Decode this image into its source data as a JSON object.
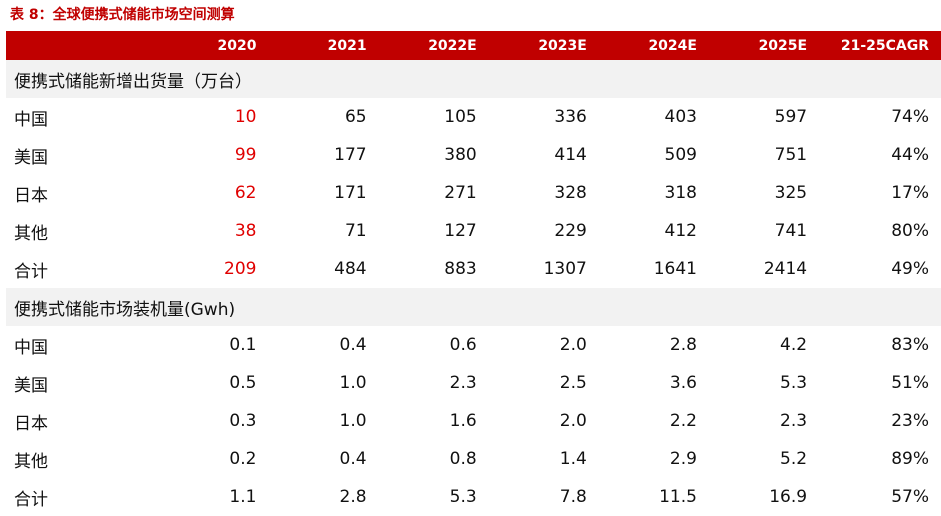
{
  "caption": "表 8：全球便携式储能市场空间测算",
  "columns": [
    "",
    "2020",
    "2021",
    "2022E",
    "2023E",
    "2024E",
    "2025E",
    "21-25CAGR"
  ],
  "sections": [
    {
      "title": "便携式储能新增出货量（万台）",
      "rows": [
        {
          "label": "中国",
          "values": [
            "10",
            "65",
            "105",
            "336",
            "403",
            "597",
            "74%"
          ]
        },
        {
          "label": "美国",
          "values": [
            "99",
            "177",
            "380",
            "414",
            "509",
            "751",
            "44%"
          ]
        },
        {
          "label": "日本",
          "values": [
            "62",
            "171",
            "271",
            "328",
            "318",
            "325",
            "17%"
          ]
        },
        {
          "label": "其他",
          "values": [
            "38",
            "71",
            "127",
            "229",
            "412",
            "741",
            "80%"
          ]
        },
        {
          "label": "合计",
          "values": [
            "209",
            "484",
            "883",
            "1307",
            "1641",
            "2414",
            "49%"
          ]
        }
      ]
    },
    {
      "title": "便携式储能市场装机量(Gwh)",
      "rows": [
        {
          "label": "中国",
          "values": [
            "0.1",
            "0.4",
            "0.6",
            "2.0",
            "2.8",
            "4.2",
            "83%"
          ]
        },
        {
          "label": "美国",
          "values": [
            "0.5",
            "1.0",
            "2.3",
            "2.5",
            "3.6",
            "5.3",
            "51%"
          ]
        },
        {
          "label": "日本",
          "values": [
            "0.3",
            "1.0",
            "1.6",
            "2.0",
            "2.2",
            "2.3",
            "23%"
          ]
        },
        {
          "label": "其他",
          "values": [
            "0.2",
            "0.4",
            "0.8",
            "1.4",
            "2.9",
            "5.2",
            "89%"
          ]
        },
        {
          "label": "合计",
          "values": [
            "1.1",
            "2.8",
            "5.3",
            "7.8",
            "11.5",
            "16.9",
            "57%"
          ]
        }
      ]
    }
  ],
  "colors": {
    "accent": "#c00000",
    "highlight_text": "#e00000",
    "section_bg": "#f2f2f2"
  }
}
